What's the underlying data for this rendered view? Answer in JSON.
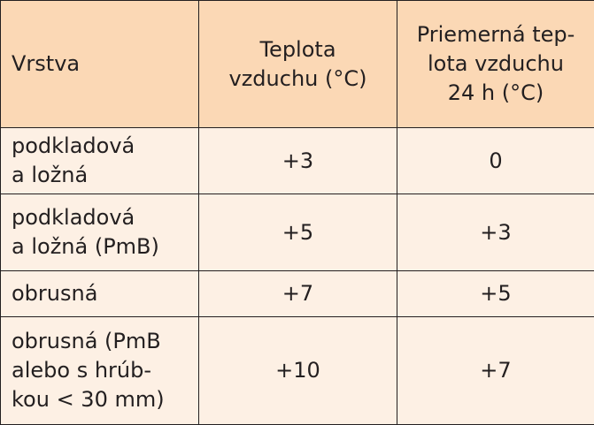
{
  "table": {
    "headers": [
      "Vrstva",
      "Teplota\nvzduchu (°C)",
      "Priemerná tep-\nlota vzduchu\n24 h (°C)"
    ],
    "rows": [
      [
        "podkladová\na ložná",
        "+3",
        "0"
      ],
      [
        "podkladová\na ložná (PmB)",
        "+5",
        "+3"
      ],
      [
        "obrusná",
        "+7",
        "+5"
      ],
      [
        "obrusná (PmB\nalebo s hrúb-\nkou < 30 mm)",
        "+10",
        "+7"
      ]
    ]
  }
}
